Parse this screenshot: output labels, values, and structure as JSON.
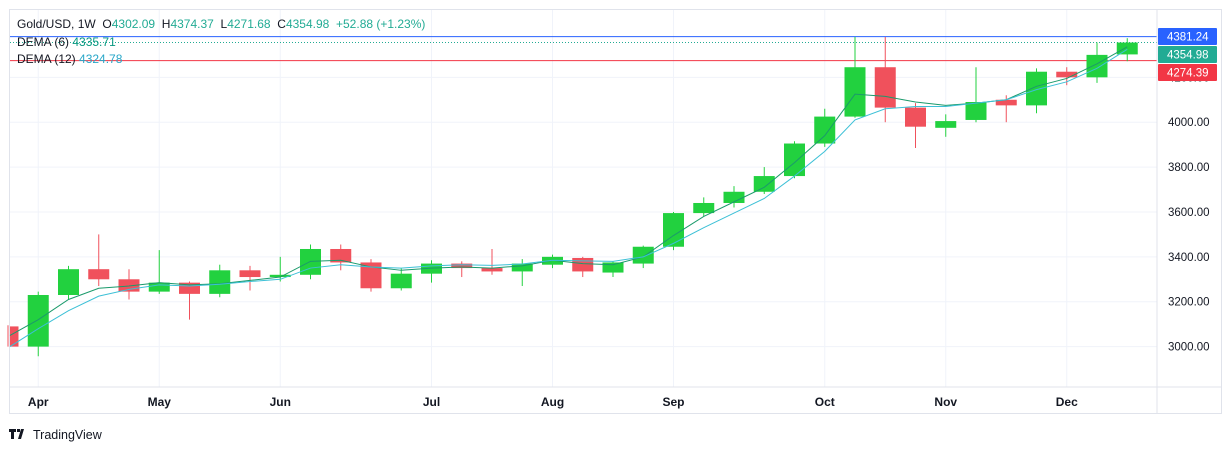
{
  "legend": {
    "symbol": "Gold/USD",
    "interval": "1W",
    "open_label": "O",
    "open": "4302.09",
    "high_label": "H",
    "high": "4374.37",
    "low_label": "L",
    "low": "4271.68",
    "close_label": "C",
    "close": "4354.98",
    "change": "+52.88 (+1.23%)",
    "dema6_label": "DEMA (6)",
    "dema6_value": "4335.71",
    "dema12_label": "DEMA (12)",
    "dema12_value": "4324.78"
  },
  "branding": "TradingView",
  "colors": {
    "up": "#22d13f",
    "down": "#f0515c",
    "dema6": "#1a9a6b",
    "dema12": "#3cc0d6",
    "blue_line": "#2962ff",
    "red_line": "#f23645",
    "grid": "#f0f3fa",
    "axis_text": "#131722"
  },
  "chart_data": {
    "type": "candlestick",
    "y_axis": {
      "range": [
        2820,
        4500
      ],
      "ticks": [
        3000,
        3200,
        3400,
        3600,
        3800,
        4000,
        4200
      ],
      "tick_labels": [
        "3000.00",
        "3200.00",
        "3400.00",
        "3600.00",
        "3800.00",
        "4000.00",
        "4200.00"
      ]
    },
    "x_axis": {
      "labels": [
        {
          "label": "Apr",
          "index": 1
        },
        {
          "label": "May",
          "index": 5
        },
        {
          "label": "Jun",
          "index": 9
        },
        {
          "label": "Jul",
          "index": 14
        },
        {
          "label": "Aug",
          "index": 18
        },
        {
          "label": "Sep",
          "index": 22
        },
        {
          "label": "Oct",
          "index": 27
        },
        {
          "label": "Nov",
          "index": 31
        },
        {
          "label": "Dec",
          "index": 35
        }
      ]
    },
    "candles": [
      {
        "o": 3090,
        "h": 3095,
        "l": 3000,
        "c": 3000
      },
      {
        "o": 3000,
        "h": 3245,
        "l": 2957,
        "c": 3230
      },
      {
        "o": 3230,
        "h": 3360,
        "l": 3210,
        "c": 3345
      },
      {
        "o": 3345,
        "h": 3500,
        "l": 3270,
        "c": 3300
      },
      {
        "o": 3300,
        "h": 3345,
        "l": 3210,
        "c": 3245
      },
      {
        "o": 3245,
        "h": 3430,
        "l": 3235,
        "c": 3285
      },
      {
        "o": 3285,
        "h": 3290,
        "l": 3120,
        "c": 3235
      },
      {
        "o": 3235,
        "h": 3365,
        "l": 3220,
        "c": 3340
      },
      {
        "o": 3340,
        "h": 3360,
        "l": 3250,
        "c": 3310
      },
      {
        "o": 3310,
        "h": 3400,
        "l": 3290,
        "c": 3320
      },
      {
        "o": 3320,
        "h": 3455,
        "l": 3300,
        "c": 3435
      },
      {
        "o": 3435,
        "h": 3455,
        "l": 3340,
        "c": 3375
      },
      {
        "o": 3375,
        "h": 3390,
        "l": 3245,
        "c": 3260
      },
      {
        "o": 3260,
        "h": 3350,
        "l": 3250,
        "c": 3325
      },
      {
        "o": 3325,
        "h": 3385,
        "l": 3285,
        "c": 3370
      },
      {
        "o": 3370,
        "h": 3380,
        "l": 3310,
        "c": 3350
      },
      {
        "o": 3350,
        "h": 3435,
        "l": 3320,
        "c": 3335
      },
      {
        "o": 3335,
        "h": 3390,
        "l": 3270,
        "c": 3370
      },
      {
        "o": 3365,
        "h": 3410,
        "l": 3350,
        "c": 3400
      },
      {
        "o": 3395,
        "h": 3400,
        "l": 3310,
        "c": 3335
      },
      {
        "o": 3330,
        "h": 3380,
        "l": 3310,
        "c": 3375
      },
      {
        "o": 3370,
        "h": 3450,
        "l": 3350,
        "c": 3445
      },
      {
        "o": 3445,
        "h": 3600,
        "l": 3430,
        "c": 3595
      },
      {
        "o": 3595,
        "h": 3665,
        "l": 3580,
        "c": 3640
      },
      {
        "o": 3640,
        "h": 3715,
        "l": 3620,
        "c": 3690
      },
      {
        "o": 3690,
        "h": 3800,
        "l": 3680,
        "c": 3760
      },
      {
        "o": 3760,
        "h": 3915,
        "l": 3750,
        "c": 3905
      },
      {
        "o": 3905,
        "h": 4060,
        "l": 3890,
        "c": 4025
      },
      {
        "o": 4025,
        "h": 4380,
        "l": 4020,
        "c": 4245
      },
      {
        "o": 4245,
        "h": 4380,
        "l": 4000,
        "c": 4065
      },
      {
        "o": 4065,
        "h": 4085,
        "l": 3885,
        "c": 3980
      },
      {
        "o": 3975,
        "h": 4035,
        "l": 3935,
        "c": 4005
      },
      {
        "o": 4010,
        "h": 4245,
        "l": 4000,
        "c": 4090
      },
      {
        "o": 4100,
        "h": 4120,
        "l": 4000,
        "c": 4075
      },
      {
        "o": 4075,
        "h": 4240,
        "l": 4040,
        "c": 4225
      },
      {
        "o": 4225,
        "h": 4245,
        "l": 4165,
        "c": 4200
      },
      {
        "o": 4200,
        "h": 4355,
        "l": 4175,
        "c": 4300
      },
      {
        "o": 4302.09,
        "h": 4374.37,
        "l": 4271.68,
        "c": 4354.98
      }
    ],
    "series": [
      {
        "name": "DEMA (6)",
        "values": [
          3050,
          3120,
          3210,
          3260,
          3270,
          3285,
          3275,
          3280,
          3295,
          3310,
          3380,
          3385,
          3355,
          3340,
          3350,
          3355,
          3350,
          3360,
          3385,
          3370,
          3365,
          3400,
          3495,
          3580,
          3645,
          3710,
          3820,
          3940,
          4125,
          4115,
          4090,
          4075,
          4085,
          4100,
          4160,
          4195,
          4260,
          4335.71
        ]
      },
      {
        "name": "DEMA (12)",
        "values": [
          3000,
          3080,
          3160,
          3225,
          3255,
          3275,
          3270,
          3278,
          3290,
          3300,
          3350,
          3365,
          3355,
          3350,
          3360,
          3365,
          3362,
          3368,
          3385,
          3382,
          3380,
          3400,
          3460,
          3530,
          3595,
          3660,
          3760,
          3870,
          4010,
          4060,
          4070,
          4070,
          4085,
          4100,
          4145,
          4180,
          4240,
          4324.78
        ]
      }
    ],
    "price_tags": [
      {
        "label": "4381.24",
        "value": 4381.24,
        "color": "#2962ff",
        "kind": "line"
      },
      {
        "label": "4354.98",
        "value": 4354.98,
        "color": "#22ab94",
        "kind": "last"
      },
      {
        "label": "4274.39",
        "value": 4274.39,
        "color": "#f23645",
        "kind": "line"
      }
    ],
    "grid": true
  }
}
